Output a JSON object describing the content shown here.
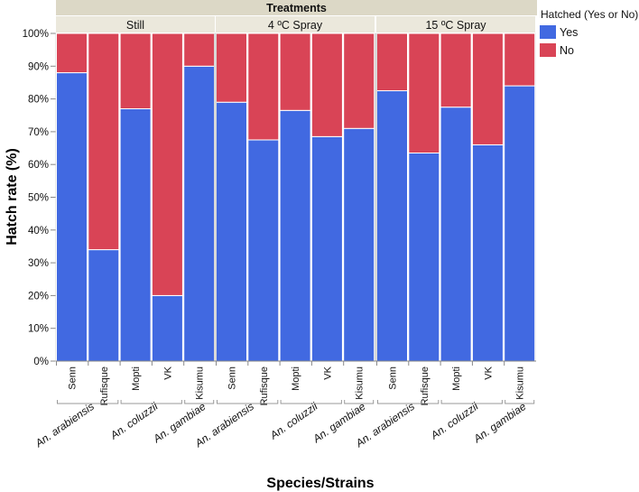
{
  "chart_data": {
    "type": "bar",
    "stacked": true,
    "header_title": "Treatments",
    "panels": [
      "Still",
      "4 ºC Spray",
      "15 ºC Spray"
    ],
    "categories": [
      "Senn",
      "Rufisque",
      "Mopti",
      "VK",
      "Kisumu"
    ],
    "species_groups": [
      {
        "name": "An. arabiensis",
        "members": [
          "Senn",
          "Rufisque"
        ]
      },
      {
        "name": "An. coluzzii",
        "members": [
          "Mopti",
          "VK"
        ]
      },
      {
        "name": "An. gambiae",
        "members": [
          "Kisumu"
        ]
      }
    ],
    "series": [
      {
        "name": "Yes",
        "color": "#4169E1",
        "values": [
          [
            88,
            34,
            77,
            20,
            90
          ],
          [
            79,
            67.5,
            76.5,
            68.5,
            71
          ],
          [
            82.5,
            63.5,
            77.5,
            66,
            84
          ]
        ]
      },
      {
        "name": "No",
        "color": "#D94456",
        "values": [
          [
            12,
            66,
            23,
            80,
            10
          ],
          [
            21,
            32.5,
            23.5,
            31.5,
            29
          ],
          [
            17.5,
            36.5,
            22.5,
            34,
            16
          ]
        ]
      }
    ],
    "ylabel": "Hatch rate (%)",
    "xlabel": "Species/Strains",
    "ylim": [
      0,
      100
    ],
    "yticks": [
      "0%",
      "10%",
      "20%",
      "30%",
      "40%",
      "50%",
      "60%",
      "70%",
      "80%",
      "90%",
      "100%"
    ],
    "legend": {
      "title": "Hatched (Yes or No)",
      "position": "right",
      "items": [
        "Yes",
        "No"
      ]
    }
  }
}
